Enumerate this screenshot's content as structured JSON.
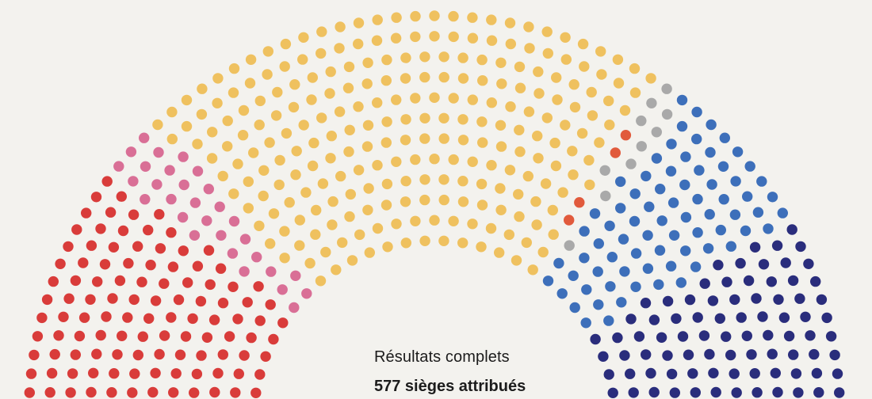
{
  "chart_data": {
    "type": "hemicycle",
    "title": "",
    "total_seats": 577,
    "rows": 12,
    "series": [
      {
        "color": "#d93c3a",
        "value": 120
      },
      {
        "color": "#d96f96",
        "value": 30
      },
      {
        "color": "#efc15f",
        "value": 245
      },
      {
        "color": "#e15a3c",
        "value": 4
      },
      {
        "color": "#a9a9a9",
        "value": 10
      },
      {
        "color": "#3d6fba",
        "value": 74
      },
      {
        "color": "#2a2d7c",
        "value": 93
      },
      {
        "color": "#7a2a6e",
        "value": 1
      }
    ]
  },
  "caption": {
    "subtitle": "Résultats complets",
    "headline": "577 sièges attribués"
  }
}
